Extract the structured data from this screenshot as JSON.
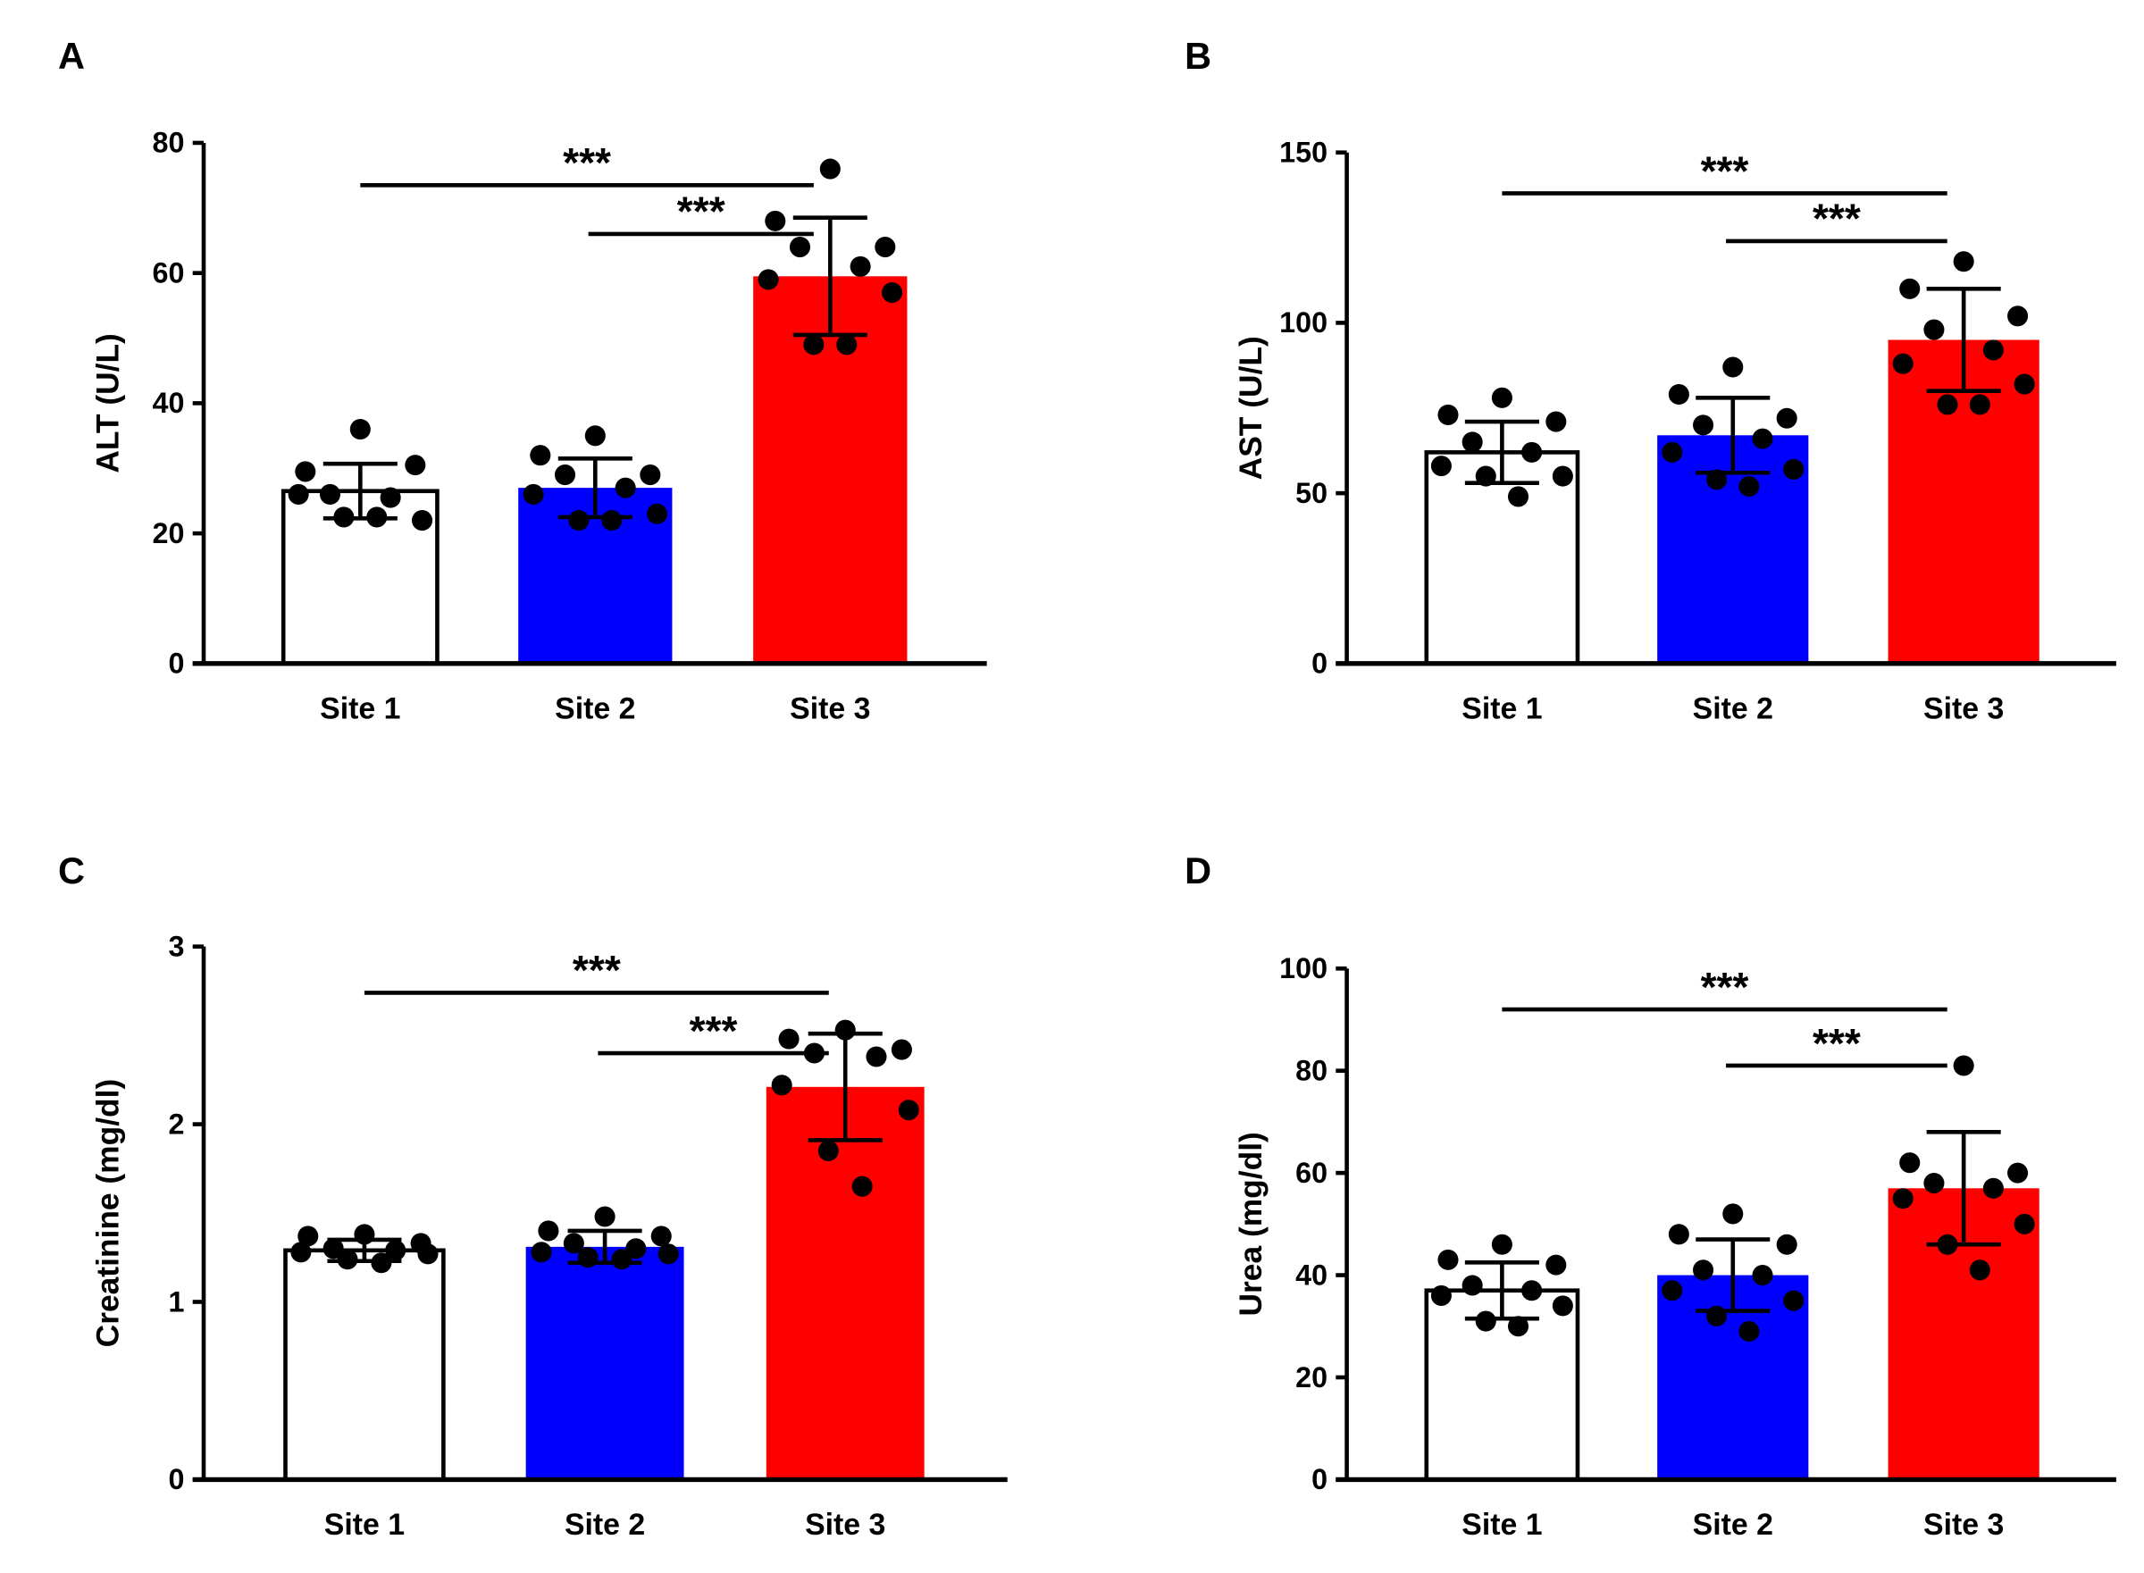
{
  "colors": {
    "site1": "#ffffff",
    "site2": "#0000ff",
    "site3": "#ff0000",
    "points": "#000000"
  },
  "chart_data": [
    {
      "panel": "A",
      "type": "bar",
      "ylabel": "ALT (U/L)",
      "categories": [
        "Site 1",
        "Site 2",
        "Site 3"
      ],
      "ylim": [
        0,
        80
      ],
      "yticks": [
        0,
        20,
        40,
        60,
        80
      ],
      "means": [
        26.5,
        27,
        59.5
      ],
      "sd": [
        4.2,
        4.5,
        9
      ],
      "points": [
        [
          36,
          29.5,
          30.5,
          26,
          25.5,
          26,
          22,
          22.5,
          22.5
        ],
        [
          35,
          32,
          29,
          29,
          27,
          26,
          23,
          22,
          22
        ],
        [
          76,
          68,
          64,
          64,
          61,
          59,
          57,
          49,
          49
        ]
      ],
      "significance": [
        {
          "from": 0,
          "to": 2,
          "level": 73.5,
          "label": "***"
        },
        {
          "from": 1,
          "to": 2,
          "level": 66,
          "label": "***"
        }
      ]
    },
    {
      "panel": "B",
      "type": "bar",
      "ylabel": "AST (U/L)",
      "categories": [
        "Site 1",
        "Site 2",
        "Site 3"
      ],
      "ylim": [
        0,
        150
      ],
      "yticks": [
        0,
        50,
        100,
        150
      ],
      "means": [
        62,
        67,
        95
      ],
      "sd": [
        9,
        11,
        15
      ],
      "points": [
        [
          78,
          73,
          71,
          65,
          62,
          58,
          55,
          55,
          49
        ],
        [
          87,
          79,
          72,
          70,
          66,
          62,
          57,
          54,
          52
        ],
        [
          118,
          110,
          102,
          98,
          92,
          88,
          82,
          76,
          76
        ]
      ],
      "significance": [
        {
          "from": 0,
          "to": 2,
          "level": 138,
          "label": "***"
        },
        {
          "from": 1,
          "to": 2,
          "level": 124,
          "label": "***"
        }
      ]
    },
    {
      "panel": "C",
      "type": "bar",
      "ylabel": "Creatinine (mg/dl)",
      "categories": [
        "Site 1",
        "Site 2",
        "Site 3"
      ],
      "ylim": [
        0,
        3
      ],
      "yticks": [
        0,
        1,
        2,
        3
      ],
      "means": [
        1.29,
        1.31,
        2.21
      ],
      "sd": [
        0.06,
        0.09,
        0.3
      ],
      "points": [
        [
          1.38,
          1.37,
          1.33,
          1.3,
          1.29,
          1.28,
          1.27,
          1.24,
          1.22
        ],
        [
          1.48,
          1.4,
          1.37,
          1.33,
          1.3,
          1.28,
          1.27,
          1.25,
          1.24
        ],
        [
          2.53,
          2.48,
          2.42,
          2.4,
          2.38,
          2.22,
          2.08,
          1.85,
          1.65
        ]
      ],
      "significance": [
        {
          "from": 0,
          "to": 2,
          "level": 2.74,
          "label": "***"
        },
        {
          "from": 1,
          "to": 2,
          "level": 2.4,
          "label": "***"
        }
      ]
    },
    {
      "panel": "D",
      "type": "bar",
      "ylabel": "Urea (mg/dl)",
      "categories": [
        "Site 1",
        "Site 2",
        "Site 3"
      ],
      "ylim": [
        0,
        100
      ],
      "yticks": [
        0,
        20,
        40,
        60,
        80,
        100
      ],
      "means": [
        37,
        40,
        57
      ],
      "sd": [
        5.5,
        7,
        11
      ],
      "points": [
        [
          46,
          43,
          42,
          38,
          37,
          36,
          34,
          31,
          30
        ],
        [
          52,
          48,
          46,
          41,
          40,
          37,
          35,
          32,
          29
        ],
        [
          81,
          62,
          60,
          58,
          57,
          55,
          50,
          46,
          41
        ]
      ],
      "significance": [
        {
          "from": 0,
          "to": 2,
          "level": 92,
          "label": "***"
        },
        {
          "from": 1,
          "to": 2,
          "level": 81,
          "label": "***"
        }
      ]
    }
  ]
}
